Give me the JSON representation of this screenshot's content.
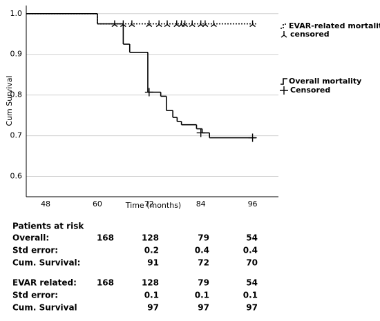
{
  "chart_data": {
    "type": "step",
    "y_label": "Cum Survival",
    "x_label": "Time (months)",
    "xlim": [
      43.5,
      102
    ],
    "xticks": [
      48,
      60,
      72,
      84,
      96
    ],
    "ylim": [
      0.55,
      1.02
    ],
    "yticks": [
      {
        "value": 0.6,
        "label": "0.6"
      },
      {
        "value": 0.7,
        "label": "0.7"
      },
      {
        "value": 0.8,
        "label": "0.8"
      },
      {
        "value": 0.9,
        "label": "0.9"
      },
      {
        "value": 1,
        "label": "1.0"
      }
    ],
    "grid": true,
    "series": [
      {
        "name": "EVAR-related mortality",
        "color": "#000000",
        "dash": true,
        "x": [
          43.5,
          60,
          96.8
        ],
        "values": [
          1.0,
          0.975,
          0.975
        ],
        "censored_name": "censored",
        "censored_x": [
          64,
          66,
          68,
          72,
          74.3,
          76.2,
          78.4,
          79.5,
          80.3,
          82,
          84,
          85,
          87,
          96
        ],
        "censored_values": [
          0.975,
          0.975,
          0.975,
          0.975,
          0.975,
          0.975,
          0.975,
          0.975,
          0.975,
          0.975,
          0.975,
          0.975,
          0.975,
          0.975
        ]
      },
      {
        "name": "Overall mortality",
        "color": "#000000",
        "dash": false,
        "x": [
          43.5,
          60,
          66,
          67.5,
          71.7,
          74.7,
          76,
          77.5,
          78.5,
          79.5,
          83,
          84.3,
          86,
          96.8
        ],
        "values": [
          1.0,
          0.975,
          0.925,
          0.905,
          0.807,
          0.797,
          0.762,
          0.745,
          0.735,
          0.727,
          0.717,
          0.707,
          0.695,
          0.695
        ],
        "censored_name": "Censored",
        "censored_x": [
          72,
          84,
          96
        ],
        "censored_values": [
          0.807,
          0.707,
          0.695
        ]
      }
    ]
  },
  "risk_table": {
    "title": "Patients at risk",
    "rows": [
      [
        "Overall:",
        168,
        128,
        79,
        54
      ],
      [
        "Std error:",
        null,
        0.2,
        0.4,
        0.4
      ],
      [
        "Cum. Survival:",
        null,
        91,
        72,
        70
      ],
      [
        "EVAR related:",
        168,
        128,
        79,
        54
      ],
      [
        "Std error:",
        null,
        0.1,
        0.1,
        0.1
      ],
      [
        "Cum. Survival",
        null,
        97,
        97,
        97
      ]
    ]
  }
}
